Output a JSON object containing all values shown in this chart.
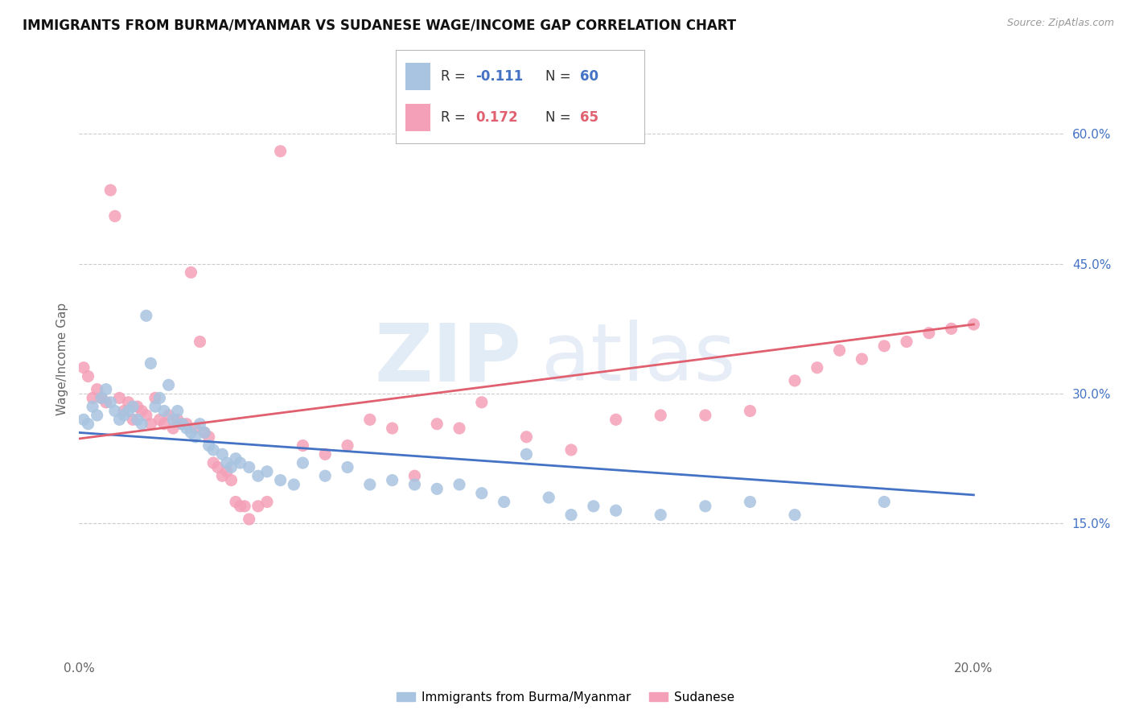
{
  "title": "IMMIGRANTS FROM BURMA/MYANMAR VS SUDANESE WAGE/INCOME GAP CORRELATION CHART",
  "source": "Source: ZipAtlas.com",
  "ylabel": "Wage/Income Gap",
  "right_yticks": [
    "60.0%",
    "45.0%",
    "30.0%",
    "15.0%"
  ],
  "right_ytick_vals": [
    0.6,
    0.45,
    0.3,
    0.15
  ],
  "legend_label_blue": "Immigrants from Burma/Myanmar",
  "legend_label_pink": "Sudanese",
  "blue_color": "#a8c4e0",
  "pink_color": "#f4a0b8",
  "blue_line_color": "#4472c4",
  "pink_line_color": "#e06070",
  "watermark_zip": "ZIP",
  "watermark_atlas": "atlas",
  "blue_scatter": [
    [
      0.001,
      0.27
    ],
    [
      0.002,
      0.265
    ],
    [
      0.003,
      0.285
    ],
    [
      0.004,
      0.275
    ],
    [
      0.005,
      0.295
    ],
    [
      0.006,
      0.305
    ],
    [
      0.007,
      0.29
    ],
    [
      0.008,
      0.28
    ],
    [
      0.009,
      0.27
    ],
    [
      0.01,
      0.275
    ],
    [
      0.011,
      0.28
    ],
    [
      0.012,
      0.285
    ],
    [
      0.013,
      0.27
    ],
    [
      0.014,
      0.265
    ],
    [
      0.015,
      0.39
    ],
    [
      0.016,
      0.335
    ],
    [
      0.017,
      0.285
    ],
    [
      0.018,
      0.295
    ],
    [
      0.019,
      0.28
    ],
    [
      0.02,
      0.31
    ],
    [
      0.021,
      0.27
    ],
    [
      0.022,
      0.28
    ],
    [
      0.023,
      0.265
    ],
    [
      0.024,
      0.26
    ],
    [
      0.025,
      0.255
    ],
    [
      0.026,
      0.25
    ],
    [
      0.027,
      0.265
    ],
    [
      0.028,
      0.255
    ],
    [
      0.029,
      0.24
    ],
    [
      0.03,
      0.235
    ],
    [
      0.032,
      0.23
    ],
    [
      0.033,
      0.22
    ],
    [
      0.034,
      0.215
    ],
    [
      0.035,
      0.225
    ],
    [
      0.036,
      0.22
    ],
    [
      0.038,
      0.215
    ],
    [
      0.04,
      0.205
    ],
    [
      0.042,
      0.21
    ],
    [
      0.045,
      0.2
    ],
    [
      0.048,
      0.195
    ],
    [
      0.05,
      0.22
    ],
    [
      0.055,
      0.205
    ],
    [
      0.06,
      0.215
    ],
    [
      0.065,
      0.195
    ],
    [
      0.07,
      0.2
    ],
    [
      0.075,
      0.195
    ],
    [
      0.08,
      0.19
    ],
    [
      0.085,
      0.195
    ],
    [
      0.09,
      0.185
    ],
    [
      0.095,
      0.175
    ],
    [
      0.1,
      0.23
    ],
    [
      0.105,
      0.18
    ],
    [
      0.11,
      0.16
    ],
    [
      0.115,
      0.17
    ],
    [
      0.12,
      0.165
    ],
    [
      0.13,
      0.16
    ],
    [
      0.14,
      0.17
    ],
    [
      0.15,
      0.175
    ],
    [
      0.16,
      0.16
    ],
    [
      0.18,
      0.175
    ]
  ],
  "pink_scatter": [
    [
      0.001,
      0.33
    ],
    [
      0.002,
      0.32
    ],
    [
      0.003,
      0.295
    ],
    [
      0.004,
      0.305
    ],
    [
      0.005,
      0.295
    ],
    [
      0.006,
      0.29
    ],
    [
      0.007,
      0.535
    ],
    [
      0.008,
      0.505
    ],
    [
      0.009,
      0.295
    ],
    [
      0.01,
      0.28
    ],
    [
      0.011,
      0.29
    ],
    [
      0.012,
      0.27
    ],
    [
      0.013,
      0.285
    ],
    [
      0.014,
      0.28
    ],
    [
      0.015,
      0.275
    ],
    [
      0.016,
      0.265
    ],
    [
      0.017,
      0.295
    ],
    [
      0.018,
      0.27
    ],
    [
      0.019,
      0.265
    ],
    [
      0.02,
      0.275
    ],
    [
      0.021,
      0.26
    ],
    [
      0.022,
      0.27
    ],
    [
      0.023,
      0.265
    ],
    [
      0.024,
      0.265
    ],
    [
      0.025,
      0.44
    ],
    [
      0.026,
      0.26
    ],
    [
      0.027,
      0.36
    ],
    [
      0.028,
      0.255
    ],
    [
      0.029,
      0.25
    ],
    [
      0.03,
      0.22
    ],
    [
      0.031,
      0.215
    ],
    [
      0.032,
      0.205
    ],
    [
      0.033,
      0.21
    ],
    [
      0.034,
      0.2
    ],
    [
      0.035,
      0.175
    ],
    [
      0.036,
      0.17
    ],
    [
      0.037,
      0.17
    ],
    [
      0.038,
      0.155
    ],
    [
      0.04,
      0.17
    ],
    [
      0.042,
      0.175
    ],
    [
      0.045,
      0.58
    ],
    [
      0.05,
      0.24
    ],
    [
      0.055,
      0.23
    ],
    [
      0.06,
      0.24
    ],
    [
      0.065,
      0.27
    ],
    [
      0.07,
      0.26
    ],
    [
      0.075,
      0.205
    ],
    [
      0.08,
      0.265
    ],
    [
      0.085,
      0.26
    ],
    [
      0.09,
      0.29
    ],
    [
      0.1,
      0.25
    ],
    [
      0.11,
      0.235
    ],
    [
      0.12,
      0.27
    ],
    [
      0.13,
      0.275
    ],
    [
      0.14,
      0.275
    ],
    [
      0.15,
      0.28
    ],
    [
      0.16,
      0.315
    ],
    [
      0.165,
      0.33
    ],
    [
      0.17,
      0.35
    ],
    [
      0.175,
      0.34
    ],
    [
      0.18,
      0.355
    ],
    [
      0.185,
      0.36
    ],
    [
      0.19,
      0.37
    ],
    [
      0.195,
      0.375
    ],
    [
      0.2,
      0.38
    ]
  ],
  "blue_line": [
    [
      0.0,
      0.255
    ],
    [
      0.2,
      0.183
    ]
  ],
  "pink_line": [
    [
      0.0,
      0.248
    ],
    [
      0.2,
      0.38
    ]
  ],
  "xlim": [
    0.0,
    0.22
  ],
  "ylim": [
    0.0,
    0.68
  ],
  "grid_yticks": [
    0.15,
    0.3,
    0.45,
    0.6
  ]
}
